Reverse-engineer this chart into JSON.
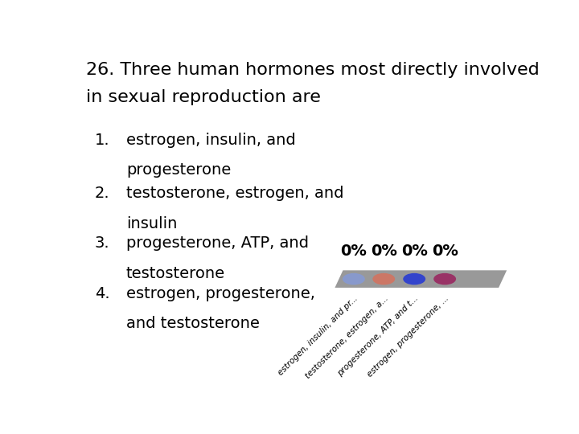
{
  "title_line1": "26. Three human hormones most directly involved",
  "title_line2": "in sexual reproduction are",
  "items": [
    {
      "num": "1.",
      "line1": "estrogen, insulin, and",
      "line2": "progesterone"
    },
    {
      "num": "2.",
      "line1": "testosterone, estrogen, and",
      "line2": "insulin"
    },
    {
      "num": "3.",
      "line1": "progesterone, ATP, and",
      "line2": "testosterone"
    },
    {
      "num": "4.",
      "line1": "estrogen, progesterone,",
      "line2": "and testosterone"
    }
  ],
  "bar_color": "#999999",
  "pct_labels": [
    "0%",
    "0%",
    "0%",
    "0%"
  ],
  "dot_colors": [
    "#8899cc",
    "#cc7766",
    "#3344cc",
    "#993366"
  ],
  "background_color": "#ffffff",
  "text_color": "#000000",
  "title_fontsize": 16,
  "body_fontsize": 14,
  "pct_fontsize": 14,
  "rotated_labels": [
    "estrogen, insulin, and pr...",
    "testosterone, estrogen, a...",
    "progesterone, ATP, and t...",
    "estrogen, progesterone, ..."
  ]
}
